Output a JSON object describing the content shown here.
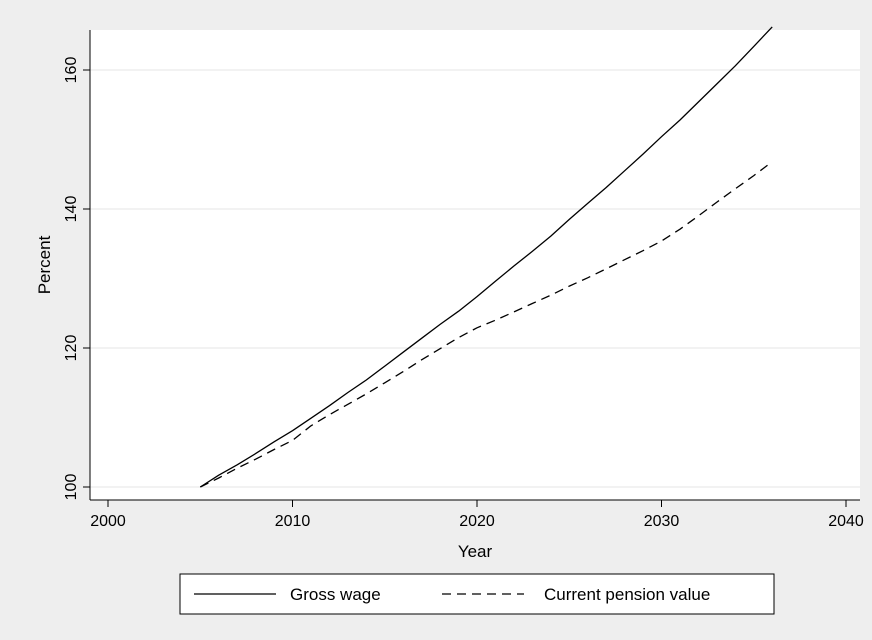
{
  "chart_data": {
    "type": "line",
    "title": "",
    "xlabel": "Year",
    "ylabel": "Percent",
    "xlim": [
      2000,
      2040
    ],
    "ylim": [
      98,
      166
    ],
    "xticks": [
      2000,
      2010,
      2020,
      2030,
      2040
    ],
    "yticks": [
      100,
      120,
      140,
      160
    ],
    "grid": "horizontal",
    "legend_position": "bottom",
    "series": [
      {
        "name": "Gross wage",
        "style": "solid",
        "color": "#000000",
        "x": [
          2005,
          2006,
          2007,
          2008,
          2009,
          2010,
          2011,
          2012,
          2013,
          2014,
          2015,
          2016,
          2017,
          2018,
          2019,
          2020,
          2021,
          2022,
          2023,
          2024,
          2025,
          2026,
          2027,
          2028,
          2029,
          2030,
          2031,
          2032,
          2033,
          2034,
          2035,
          2036
        ],
        "values": [
          100,
          101.7,
          103.2,
          104.8,
          106.5,
          108.1,
          109.9,
          111.7,
          113.6,
          115.4,
          117.4,
          119.4,
          121.4,
          123.4,
          125.3,
          127.4,
          129.6,
          131.8,
          133.9,
          136.1,
          138.5,
          140.8,
          143.1,
          145.5,
          147.9,
          150.4,
          152.8,
          155.4,
          158.0,
          160.6,
          163.4,
          166.2
        ]
      },
      {
        "name": "Current pension value",
        "style": "dashed",
        "color": "#000000",
        "x": [
          2005,
          2006,
          2007,
          2008,
          2009,
          2010,
          2011,
          2012,
          2013,
          2014,
          2015,
          2016,
          2017,
          2018,
          2019,
          2020,
          2021,
          2022,
          2023,
          2024,
          2025,
          2026,
          2027,
          2028,
          2029,
          2030,
          2031,
          2032,
          2033,
          2034,
          2035,
          2036
        ],
        "values": [
          100,
          101.3,
          102.7,
          104.0,
          105.4,
          106.7,
          108.8,
          110.4,
          111.9,
          113.4,
          115.0,
          116.6,
          118.3,
          119.9,
          121.5,
          122.9,
          124.0,
          125.2,
          126.4,
          127.6,
          128.9,
          130.1,
          131.4,
          132.7,
          134.0,
          135.4,
          137.1,
          139.0,
          141.0,
          142.9,
          144.8,
          146.8
        ]
      }
    ]
  }
}
